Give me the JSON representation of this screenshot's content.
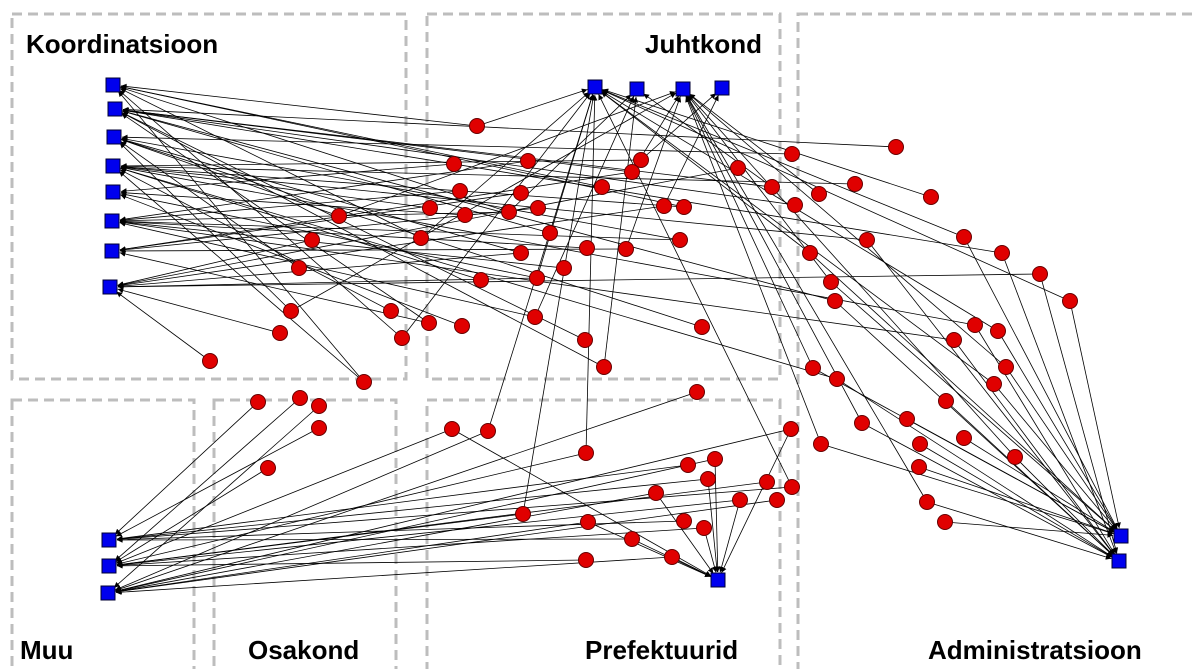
{
  "groups": [
    {
      "label": "Koordinatsioon"
    },
    {
      "label": "Juhtkond"
    },
    {
      "label": "Muu"
    },
    {
      "label": "Osakond"
    },
    {
      "label": "Prefektuurid"
    },
    {
      "label": "Administratsioon"
    }
  ]
}
